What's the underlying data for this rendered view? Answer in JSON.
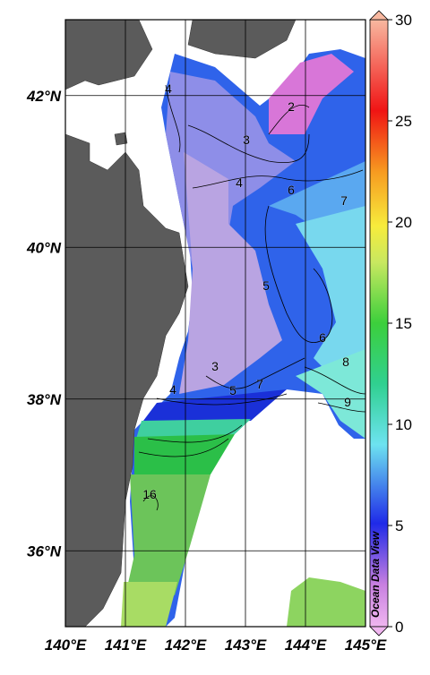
{
  "map": {
    "type": "contour-map",
    "xlim": [
      140,
      145
    ],
    "ylim": [
      35,
      43
    ],
    "xticks": [
      {
        "value": 140,
        "label": "140°E"
      },
      {
        "value": 141,
        "label": "141°E"
      },
      {
        "value": 142,
        "label": "142°E"
      },
      {
        "value": 143,
        "label": "143°E"
      },
      {
        "value": 144,
        "label": "144°E"
      },
      {
        "value": 145,
        "label": "145°E"
      }
    ],
    "yticks": [
      {
        "value": 36,
        "label": "36°N"
      },
      {
        "value": 38,
        "label": "38°N"
      },
      {
        "value": 40,
        "label": "40°N"
      },
      {
        "value": 42,
        "label": "42°N"
      }
    ],
    "grid": true
  },
  "colorbar": {
    "range": [
      0,
      30
    ],
    "ticks": [
      0,
      5,
      10,
      15,
      20,
      25,
      30
    ]
  },
  "contour_labels": [
    4,
    3,
    2,
    4,
    6,
    7,
    5,
    6,
    8,
    9,
    3,
    4,
    5,
    7,
    16
  ],
  "credit": "Ocean Data View"
}
